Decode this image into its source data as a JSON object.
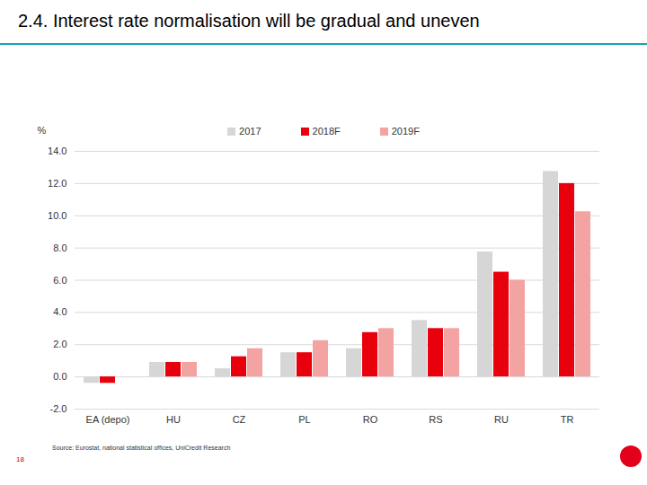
{
  "chart_data": {
    "type": "bar",
    "title": "2.4. Interest rate normalisation will be gradual and uneven",
    "source": "Source: Eurostat, national statistical offices, UniCredit Research",
    "page_number": "18",
    "y_label": "%",
    "categories": [
      "EA (depo)",
      "HU",
      "CZ",
      "PL",
      "RO",
      "RS",
      "RU",
      "TR"
    ],
    "series": [
      {
        "name": "2017",
        "color": "#d6d6d6",
        "values": [
          -0.4,
          0.9,
          0.5,
          1.5,
          1.75,
          3.5,
          7.75,
          12.75
        ]
      },
      {
        "name": "2018F",
        "color": "#e8000d",
        "values": [
          -0.4,
          0.9,
          1.25,
          1.5,
          2.75,
          3.0,
          6.5,
          12.0
        ]
      },
      {
        "name": "2019F",
        "color": "#f4a3a3",
        "values": [
          0.0,
          0.9,
          1.75,
          2.25,
          3.0,
          3.0,
          6.0,
          10.25
        ]
      }
    ],
    "ylim": [
      -2,
      14
    ],
    "yticks": [
      {
        "value": -2,
        "label": "-2.0"
      },
      {
        "value": 0,
        "label": "0.0"
      },
      {
        "value": 2,
        "label": "2.0"
      },
      {
        "value": 4,
        "label": "4.0"
      },
      {
        "value": 6,
        "label": "6.0"
      },
      {
        "value": 8,
        "label": "8.0"
      },
      {
        "value": 10,
        "label": "10.0"
      },
      {
        "value": 12,
        "label": "12.0"
      },
      {
        "value": 14,
        "label": "14.0"
      }
    ],
    "grid": true,
    "legend": "top"
  }
}
